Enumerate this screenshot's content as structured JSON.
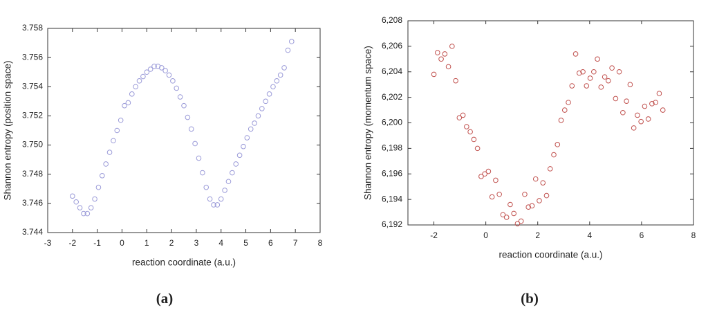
{
  "chart_data": [
    {
      "type": "scatter",
      "caption": "(a)",
      "x_label": "reaction coordinate (a.u.)",
      "y_label": "Shannon entropy (position space)",
      "color": "#9a9ad8",
      "xlim": [
        -3,
        8
      ],
      "xticks": [
        -3,
        -2,
        -1,
        0,
        1,
        2,
        3,
        4,
        5,
        6,
        7,
        8
      ],
      "ylim": [
        3.744,
        3.758
      ],
      "yticks": [
        {
          "value": 3.744,
          "label": "3.744"
        },
        {
          "value": 3.746,
          "label": "3.746"
        },
        {
          "value": 3.748,
          "label": "3.748"
        },
        {
          "value": 3.75,
          "label": "3.750"
        },
        {
          "value": 3.752,
          "label": "3.752"
        },
        {
          "value": 3.754,
          "label": "3.754"
        },
        {
          "value": 3.756,
          "label": "3.756"
        },
        {
          "value": 3.758,
          "label": "3.758"
        }
      ],
      "x": [
        -2,
        -1.85,
        -1.7,
        -1.55,
        -1.4,
        -1.25,
        -1.1,
        -0.95,
        -0.8,
        -0.65,
        -0.5,
        -0.35,
        -0.2,
        -0.05,
        0.1,
        0.25,
        0.4,
        0.55,
        0.7,
        0.85,
        1,
        1.15,
        1.3,
        1.45,
        1.6,
        1.75,
        1.9,
        2.05,
        2.2,
        2.35,
        2.5,
        2.65,
        2.8,
        2.95,
        3.1,
        3.25,
        3.4,
        3.55,
        3.7,
        3.85,
        4,
        4.15,
        4.3,
        4.45,
        4.6,
        4.75,
        4.9,
        5.05,
        5.2,
        5.35,
        5.5,
        5.65,
        5.8,
        5.95,
        6.1,
        6.25,
        6.4,
        6.55,
        6.7,
        6.85
      ],
      "values": [
        3.7465,
        3.7461,
        3.7457,
        3.7453,
        3.7453,
        3.7457,
        3.7463,
        3.7471,
        3.7479,
        3.7487,
        3.7495,
        3.7503,
        3.751,
        3.7517,
        3.7527,
        3.7529,
        3.7535,
        3.754,
        3.7544,
        3.7547,
        3.755,
        3.7552,
        3.7554,
        3.7554,
        3.7553,
        3.7551,
        3.7548,
        3.7544,
        3.7539,
        3.7533,
        3.7527,
        3.7519,
        3.7511,
        3.7501,
        3.7491,
        3.7481,
        3.7471,
        3.7463,
        3.7459,
        3.7459,
        3.7463,
        3.7469,
        3.7475,
        3.7481,
        3.7487,
        3.7493,
        3.7499,
        3.7505,
        3.7511,
        3.7515,
        3.752,
        3.7525,
        3.753,
        3.7535,
        3.754,
        3.7544,
        3.7548,
        3.7553,
        3.7565,
        3.7571
      ]
    },
    {
      "type": "scatter",
      "caption": "(b)",
      "x_label": "reaction coordinate (a.u.)",
      "y_label": "Shannon entropy (momentum space)",
      "color": "#c0504d",
      "xlim": [
        -3,
        8
      ],
      "xticks": [
        -2,
        0,
        2,
        4,
        6,
        8
      ],
      "ylim": [
        6.192,
        6.208
      ],
      "yticks": [
        {
          "value": 6.192,
          "label": "6,192"
        },
        {
          "value": 6.194,
          "label": "6,194"
        },
        {
          "value": 6.196,
          "label": "6,196"
        },
        {
          "value": 6.198,
          "label": "6,198"
        },
        {
          "value": 6.2,
          "label": "6,200"
        },
        {
          "value": 6.202,
          "label": "6,202"
        },
        {
          "value": 6.204,
          "label": "6,204"
        },
        {
          "value": 6.206,
          "label": "6,206"
        },
        {
          "value": 6.208,
          "label": "6,208"
        }
      ],
      "x": [
        -2,
        -1.86,
        -1.72,
        -1.58,
        -1.44,
        -1.3,
        -1.16,
        -1.02,
        -0.88,
        -0.74,
        -0.6,
        -0.46,
        -0.32,
        -0.18,
        -0.04,
        0.1,
        0.24,
        0.38,
        0.52,
        0.66,
        0.8,
        0.94,
        1.08,
        1.22,
        1.36,
        1.5,
        1.64,
        1.78,
        1.92,
        2.06,
        2.2,
        2.34,
        2.48,
        2.62,
        2.76,
        2.9,
        3.04,
        3.18,
        3.32,
        3.46,
        3.6,
        3.74,
        3.88,
        4.02,
        4.16,
        4.3,
        4.44,
        4.58,
        4.72,
        4.86,
        5,
        5.14,
        5.28,
        5.42,
        5.56,
        5.7,
        5.84,
        5.98,
        6.12,
        6.26,
        6.4,
        6.54,
        6.68,
        6.82
      ],
      "values": [
        6.2038,
        6.2055,
        6.205,
        6.2054,
        6.2044,
        6.206,
        6.2033,
        6.2004,
        6.2006,
        6.1997,
        6.1993,
        6.1987,
        6.198,
        6.1958,
        6.196,
        6.1962,
        6.1942,
        6.1955,
        6.1944,
        6.1928,
        6.1926,
        6.1936,
        6.1929,
        6.1921,
        6.1923,
        6.1944,
        6.1934,
        6.1935,
        6.1956,
        6.1939,
        6.1953,
        6.1943,
        6.1964,
        6.1975,
        6.1983,
        6.2002,
        6.201,
        6.2016,
        6.2029,
        6.2054,
        6.2039,
        6.204,
        6.2029,
        6.2035,
        6.204,
        6.205,
        6.2028,
        6.2036,
        6.2033,
        6.2043,
        6.2019,
        6.204,
        6.2008,
        6.2017,
        6.203,
        6.1996,
        6.2006,
        6.2001,
        6.2013,
        6.2003,
        6.2015,
        6.2016,
        6.2023,
        6.201
      ]
    }
  ]
}
